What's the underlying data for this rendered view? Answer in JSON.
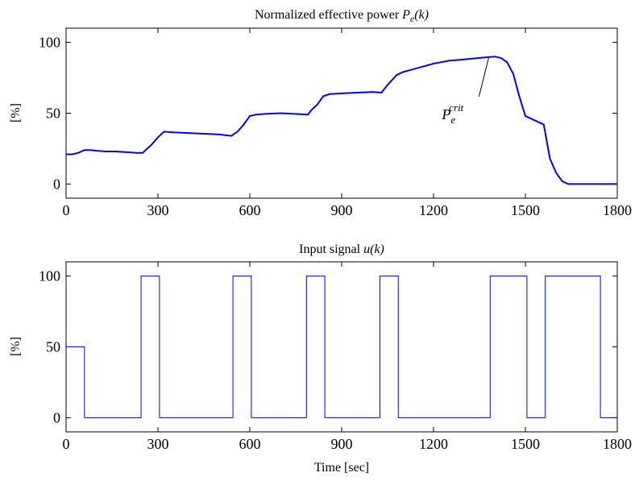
{
  "chart_data": [
    {
      "type": "line",
      "title_prefix": "Normalized effective power",
      "title_math": "P",
      "title_math_sub": "e",
      "title_math_arg": "(k)",
      "xlabel": "",
      "ylabel": "[%]",
      "xlim": [
        0,
        1800
      ],
      "ylim": [
        -10,
        110
      ],
      "xticks": [
        0,
        300,
        600,
        900,
        1200,
        1500,
        1800
      ],
      "yticks": [
        0,
        50,
        100
      ],
      "line_color": "#0000ff",
      "series": [
        {
          "x": [
            0,
            20,
            40,
            60,
            80,
            100,
            130,
            160,
            200,
            230,
            250,
            280,
            300,
            320,
            350,
            400,
            450,
            500,
            540,
            560,
            580,
            600,
            620,
            650,
            700,
            750,
            790,
            800,
            820,
            840,
            860,
            900,
            950,
            1000,
            1030,
            1050,
            1080,
            1100,
            1150,
            1200,
            1250,
            1300,
            1350,
            1400,
            1420,
            1440,
            1460,
            1480,
            1500,
            1510,
            1560,
            1570,
            1580,
            1600,
            1620,
            1640,
            1700,
            1800
          ],
          "y": [
            21,
            21,
            22,
            24,
            24,
            23.5,
            23,
            23,
            22.5,
            22,
            22,
            28,
            33,
            37,
            36.5,
            36,
            35.5,
            35,
            34,
            37,
            42,
            48,
            49,
            49.5,
            50,
            49.5,
            49,
            52,
            56,
            62,
            63.5,
            64,
            64.5,
            65,
            64.5,
            70,
            77,
            79,
            82,
            85,
            87,
            88,
            89,
            90,
            89,
            86,
            78,
            62,
            48,
            47,
            42,
            30,
            18,
            8,
            2,
            0,
            0,
            0
          ]
        }
      ],
      "annotation": {
        "text": "P",
        "sub": "e",
        "sup": "crit",
        "x": 1380,
        "y": 89
      }
    },
    {
      "type": "line",
      "title_prefix": "Input signal",
      "title_math": "u",
      "title_math_sub": "",
      "title_math_arg": "(k)",
      "xlabel": "Time [sec]",
      "ylabel": "[%]",
      "xlim": [
        0,
        1800
      ],
      "ylim": [
        -10,
        110
      ],
      "xticks": [
        0,
        300,
        600,
        900,
        1200,
        1500,
        1800
      ],
      "yticks": [
        0,
        50,
        100
      ],
      "line_color": "#0000ff",
      "series": [
        {
          "x": [
            0,
            60,
            60,
            245,
            245,
            305,
            305,
            545,
            545,
            605,
            605,
            785,
            785,
            845,
            845,
            1025,
            1025,
            1085,
            1085,
            1385,
            1385,
            1505,
            1505,
            1565,
            1565,
            1745,
            1745,
            1800
          ],
          "y": [
            50,
            50,
            0,
            0,
            100,
            100,
            0,
            0,
            100,
            100,
            0,
            0,
            100,
            100,
            0,
            0,
            100,
            100,
            0,
            0,
            100,
            100,
            0,
            0,
            100,
            100,
            0,
            0
          ]
        }
      ]
    }
  ]
}
